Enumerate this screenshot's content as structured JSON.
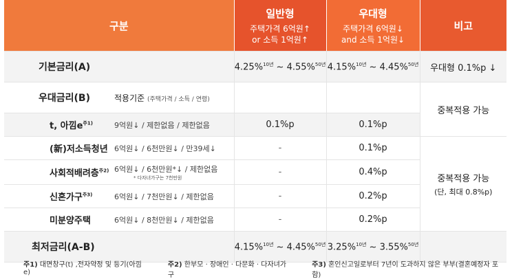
{
  "header": {
    "category": "구분",
    "general": {
      "title": "일반형",
      "sub1": "주택가격 6억원↑",
      "sub2": "or 소득 1억원↑"
    },
    "preferential": {
      "title": "우대형",
      "sub1": "주택가격 6억원↓",
      "sub2": "and 소득 1억원↓"
    },
    "note": "비고"
  },
  "base_rate": {
    "label": "기본금리(A)",
    "general": {
      "from": "4.25%",
      "from_sup": "10년",
      "sep": " ~ ",
      "to": "4.55%",
      "to_sup": "50년"
    },
    "preferential": {
      "from": "4.15%",
      "from_sup": "10년",
      "sep": " ~ ",
      "to": "4.45%",
      "to_sup": "50년"
    },
    "note": "우대형 0.1%p ↓"
  },
  "pref_rate": {
    "label": "우대금리(B)",
    "criteria_title": "적용기준",
    "criteria_sub": "(주택가격 / 소득 / 연령)"
  },
  "rows": [
    {
      "label": "t, 아낌e",
      "sup": "주1)",
      "criteria": "9억원↓ / 제한없음 / 제한없음",
      "criteria_note": "",
      "general": "0.1%p",
      "preferential": "0.1%p"
    },
    {
      "label": "(新)저소득청년",
      "sup": "",
      "criteria": "6억원↓ / 6천만원↓ / 만39세↓",
      "criteria_note": "",
      "general": "-",
      "preferential": "0.1%p"
    },
    {
      "label": "사회적배려층",
      "sup": "주2)",
      "criteria": "6억원↓ / 6천만원*↓ / 제한없음",
      "criteria_note": "* 다자녀가구는 7천만원",
      "general": "-",
      "preferential": "0.4%p"
    },
    {
      "label": "신혼가구",
      "sup": "주3)",
      "criteria": "6억원↓ / 7천만원↓ / 제한없음",
      "criteria_note": "",
      "general": "-",
      "preferential": "0.2%p"
    },
    {
      "label": "미분양주택",
      "sup": "",
      "criteria": "6억원↓ / 8천만원↓ / 제한없음",
      "criteria_note": "",
      "general": "-",
      "preferential": "0.2%p"
    }
  ],
  "notes": {
    "dup1": "중복적용 가능",
    "dup2": "중복적용 가능",
    "dup2_sub": "(단, 최대 0.8%p)"
  },
  "min_rate": {
    "label": "최저금리(A-B)",
    "general": {
      "from": "4.15%",
      "from_sup": "10년",
      "sep": " ~ ",
      "to": "4.45%",
      "to_sup": "50년"
    },
    "preferential": {
      "from": "3.25%",
      "from_sup": "10년",
      "sep": " ~ ",
      "to": "3.55%",
      "to_sup": "50년"
    }
  },
  "footnotes": [
    {
      "key": "주1)",
      "text": " 대면창구(t) ,전자약정 및 등기(아낌e)"
    },
    {
      "key": "주2)",
      "text": " 한부모 · 장애인 · 다문화 · 다자녀가구"
    },
    {
      "key": "주3)",
      "text": " 혼인신고일로부터 7년이 도과하지 않은 부부(결혼예정자 포함)"
    }
  ],
  "colors": {
    "header_primary": "#e6532c",
    "header_secondary": "#f07a3c",
    "row_shade": "#f3f3f3"
  }
}
